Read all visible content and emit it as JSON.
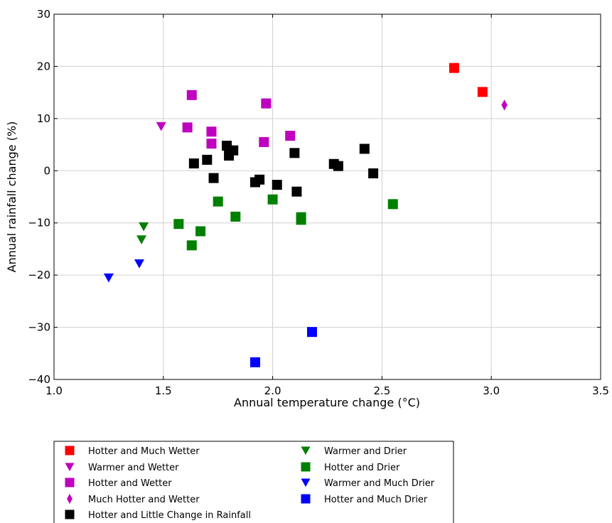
{
  "chart_data": {
    "type": "scatter",
    "xlabel": "Annual temperature change (°C)",
    "ylabel": "Annual rainfall change (%)",
    "xlim": [
      1.0,
      3.5
    ],
    "ylim": [
      -40,
      30
    ],
    "xticks": [
      "1.0",
      "1.5",
      "2.0",
      "2.5",
      "3.0",
      "3.5"
    ],
    "yticks": [
      "30",
      "20",
      "10",
      "0",
      "−10",
      "−20",
      "−30",
      "−40"
    ],
    "grid": true,
    "legend_placement": "below",
    "series": [
      {
        "name": "Hotter and Much Wetter",
        "marker": "square",
        "color": "#ff0000",
        "points": [
          [
            2.83,
            19.7
          ],
          [
            2.96,
            15.1
          ]
        ]
      },
      {
        "name": "Warmer and Wetter",
        "marker": "triangle-down",
        "color": "#bf00bf",
        "points": [
          [
            1.49,
            8.5
          ]
        ]
      },
      {
        "name": "Hotter and Wetter",
        "marker": "square",
        "color": "#bf00bf",
        "points": [
          [
            1.63,
            14.5
          ],
          [
            1.61,
            8.3
          ],
          [
            1.72,
            7.5
          ],
          [
            1.72,
            5.2
          ],
          [
            1.97,
            12.9
          ],
          [
            1.96,
            5.5
          ],
          [
            2.08,
            6.7
          ]
        ]
      },
      {
        "name": "Much Hotter and Wetter",
        "marker": "diamond",
        "color": "#bf00bf",
        "points": [
          [
            3.06,
            12.6
          ]
        ]
      },
      {
        "name": "Hotter and Little Change in Rainfall",
        "marker": "square",
        "color": "#000000",
        "points": [
          [
            1.64,
            1.4
          ],
          [
            1.7,
            2.1
          ],
          [
            1.73,
            -1.4
          ],
          [
            1.79,
            4.8
          ],
          [
            1.8,
            2.9
          ],
          [
            1.82,
            3.9
          ],
          [
            1.92,
            -2.2
          ],
          [
            1.94,
            -1.7
          ],
          [
            2.02,
            -2.7
          ],
          [
            2.1,
            3.4
          ],
          [
            2.11,
            -4.0
          ],
          [
            2.28,
            1.3
          ],
          [
            2.3,
            0.9
          ],
          [
            2.42,
            4.2
          ],
          [
            2.46,
            -0.5
          ]
        ]
      },
      {
        "name": "Warmer and Drier",
        "marker": "triangle-down",
        "color": "#007f00",
        "points": [
          [
            1.41,
            -10.7
          ],
          [
            1.4,
            -13.2
          ]
        ]
      },
      {
        "name": "Hotter and Drier",
        "marker": "square",
        "color": "#008000",
        "points": [
          [
            1.57,
            -10.2
          ],
          [
            1.63,
            -14.3
          ],
          [
            1.67,
            -11.6
          ],
          [
            1.75,
            -5.9
          ],
          [
            1.83,
            -8.8
          ],
          [
            2.0,
            -5.5
          ],
          [
            2.13,
            -8.9
          ],
          [
            2.13,
            -9.4
          ],
          [
            2.55,
            -6.4
          ]
        ]
      },
      {
        "name": "Warmer and Much Drier",
        "marker": "triangle-down",
        "color": "#0000ff",
        "points": [
          [
            1.25,
            -20.5
          ],
          [
            1.39,
            -17.8
          ]
        ]
      },
      {
        "name": "Hotter and Much Drier",
        "marker": "square",
        "color": "#0000ff",
        "points": [
          [
            1.92,
            -36.7
          ],
          [
            2.18,
            -30.9
          ]
        ]
      }
    ]
  }
}
